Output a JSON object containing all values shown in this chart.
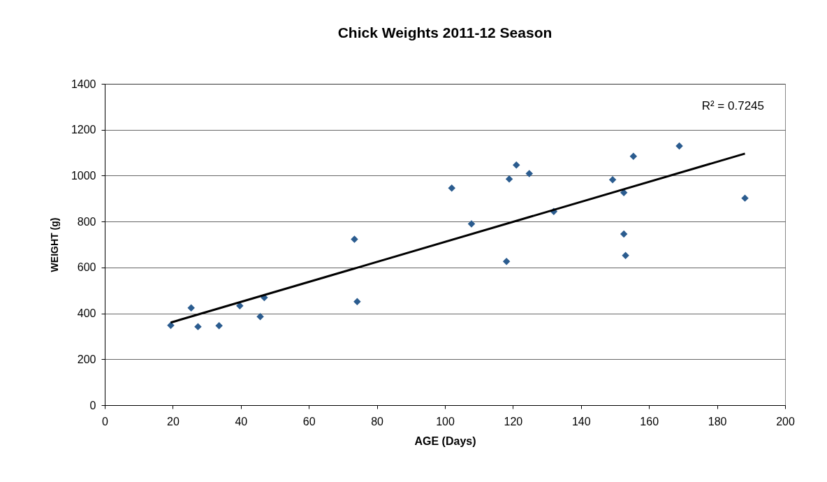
{
  "chart_data": {
    "type": "scatter",
    "title": "Chick Weights 2011-12 Season",
    "xlabel": "AGE (Days)",
    "ylabel": "WEIGHT (g)",
    "xlim": [
      0,
      200
    ],
    "xticks": [
      0,
      20,
      40,
      60,
      80,
      100,
      120,
      140,
      160,
      180,
      200
    ],
    "ylim": [
      0,
      1400
    ],
    "yticks": [
      0,
      200,
      400,
      600,
      800,
      1000,
      1200,
      1400
    ],
    "grid": "y",
    "annotations": [
      "R² = 0.7245"
    ],
    "series": [
      {
        "marker": "diamond",
        "color": "#2b5c8f",
        "x": [
          19.4,
          25.4,
          27.4,
          33.6,
          39.7,
          45.7,
          46.9,
          73.4,
          74.2,
          102,
          107.8,
          118.1,
          118.9,
          121,
          124.8,
          132,
          149.3,
          155.4,
          168.9,
          152.6,
          152.6,
          153.1,
          188.2
        ],
        "values": [
          348,
          424,
          342,
          346,
          433,
          386,
          469,
          723,
          451,
          946,
          790,
          626,
          985,
          1046,
          1009,
          844,
          982,
          1084,
          1129,
          926,
          746,
          652,
          902
        ]
      },
      {
        "type": "line",
        "color": "#000000",
        "x": [
          19.4,
          188.2
        ],
        "values": [
          360,
          1096
        ]
      }
    ]
  }
}
